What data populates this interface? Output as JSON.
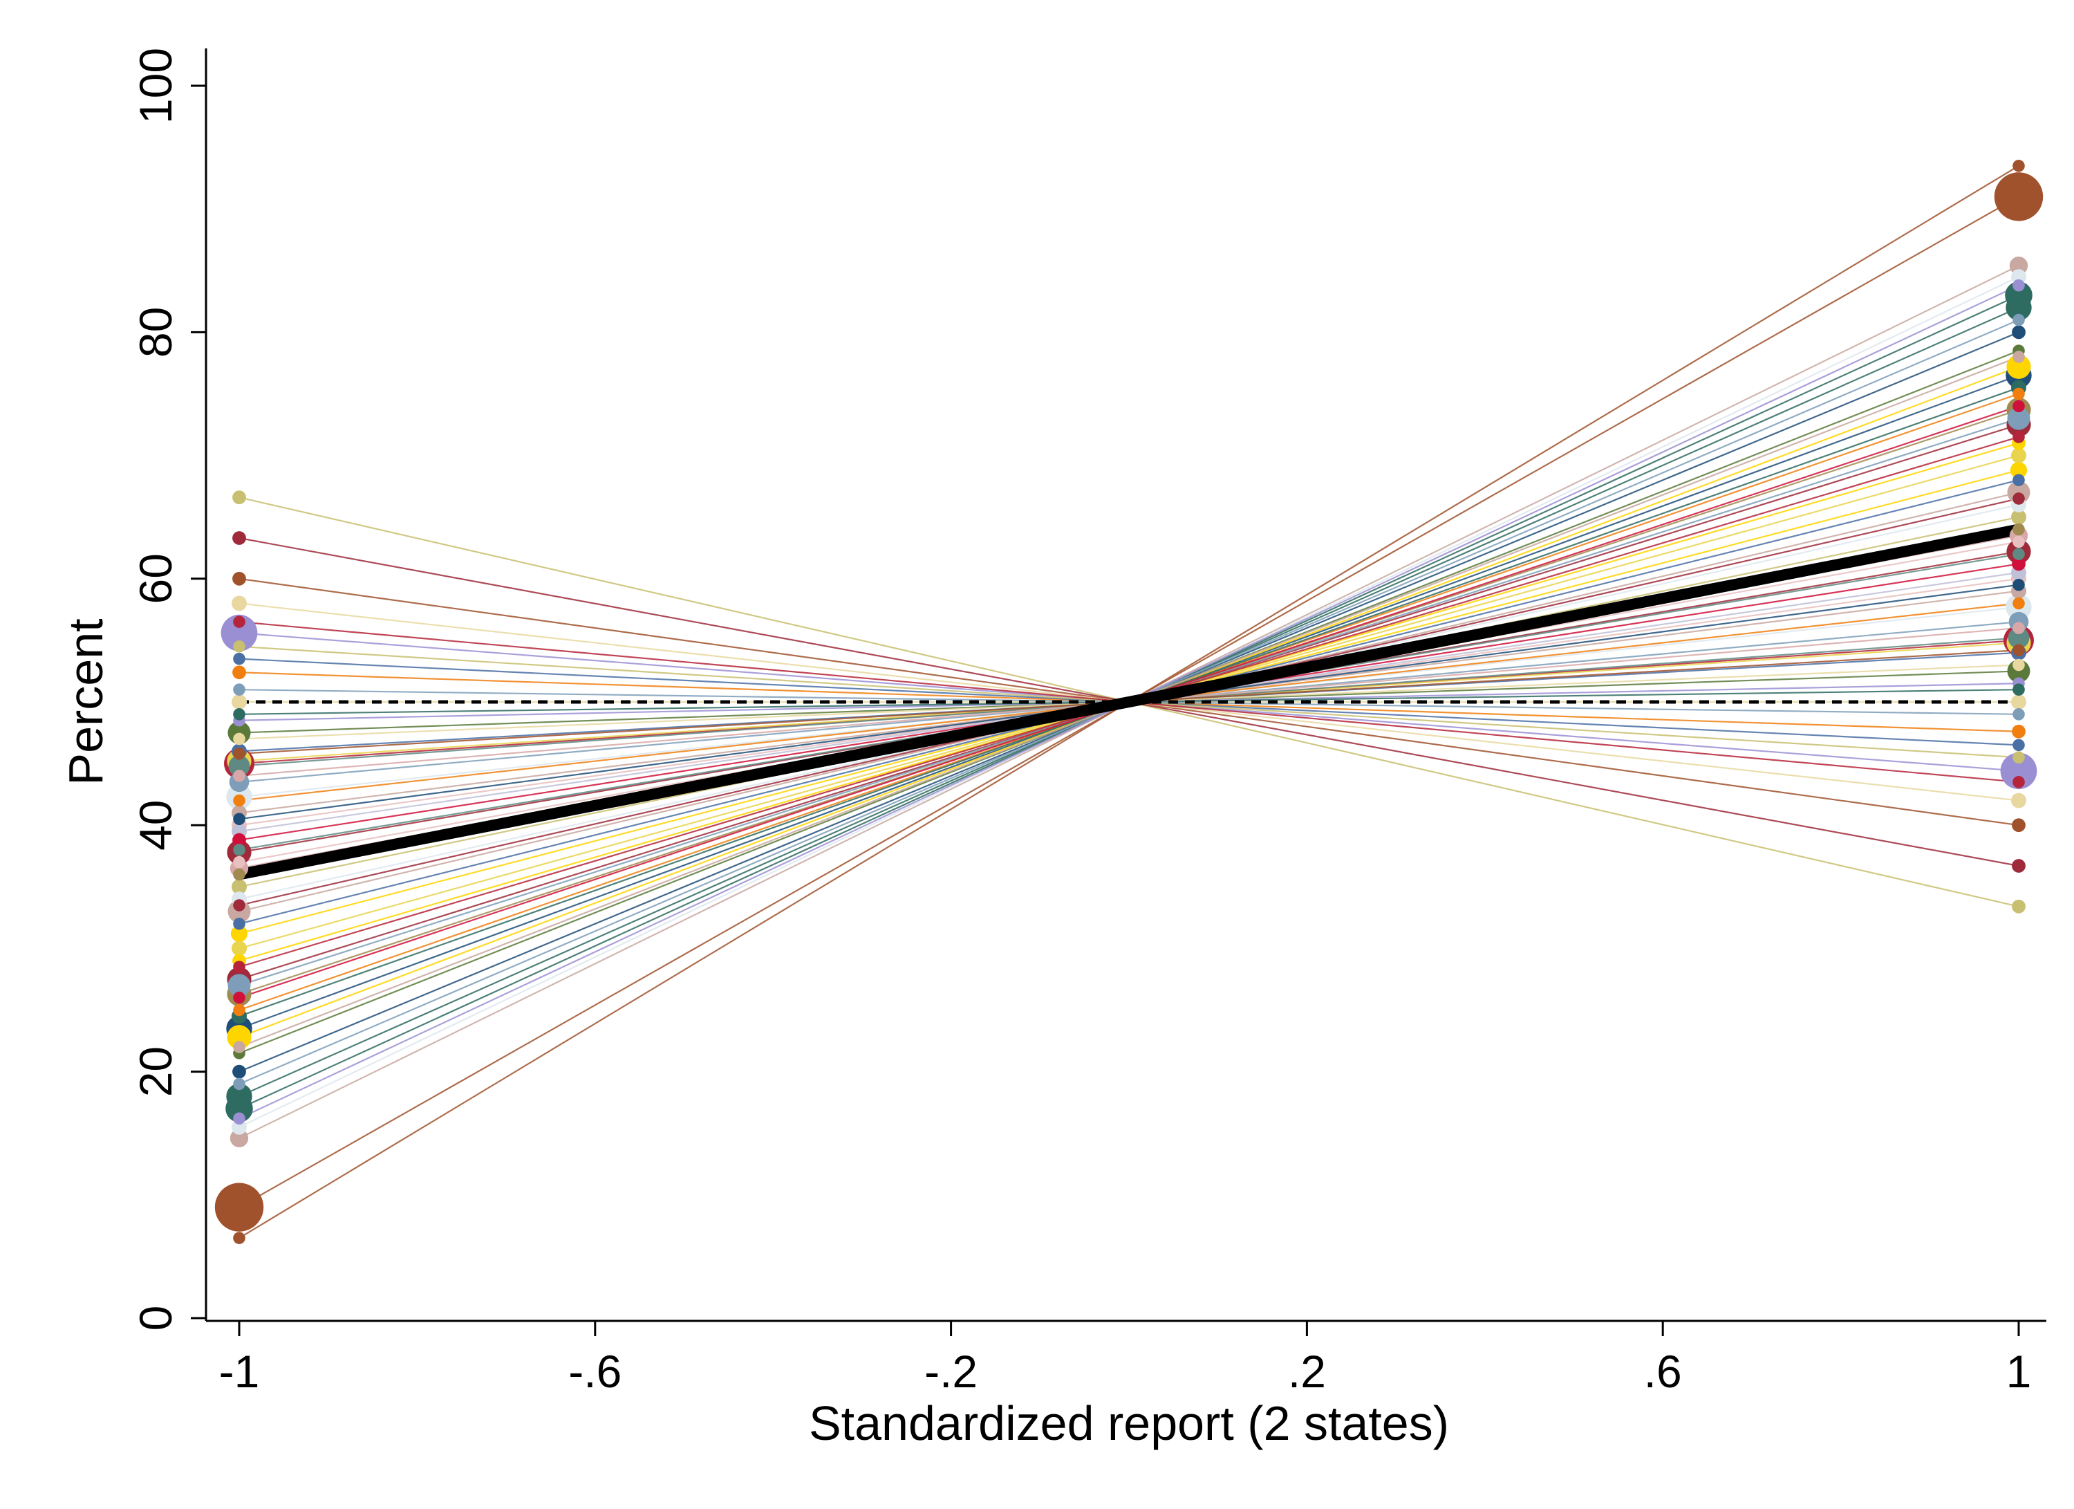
{
  "chart_data": {
    "type": "line",
    "title": "",
    "xlabel": "Standardized report (2 states)",
    "ylabel": "Percent",
    "xlim": [
      -1.04,
      1.04
    ],
    "ylim": [
      0,
      100
    ],
    "x_ticks": [
      -1,
      -0.6,
      -0.2,
      0.2,
      0.6,
      1
    ],
    "x_tick_labels": [
      "-1",
      "-.6",
      "-.2",
      ".2",
      ".6",
      "1"
    ],
    "y_ticks": [
      0,
      20,
      40,
      60,
      80,
      100
    ],
    "y_tick_labels": [
      "0",
      "20",
      "40",
      "60",
      "80",
      "100"
    ],
    "grid": false,
    "legend": "none",
    "reference_line": {
      "y": 50,
      "style": "dashed",
      "color": "#000000"
    },
    "mean_line": {
      "x": [
        -1,
        1
      ],
      "y": [
        36,
        64
      ],
      "color": "#000000"
    },
    "series": [
      {
        "y": [
          9,
          91
        ],
        "color": "#A0522D",
        "size": 3.2
      },
      {
        "y": [
          55.6,
          44.4
        ],
        "color": "#9B8FD4",
        "size": 2.4
      },
      {
        "y": [
          47.5,
          52.5
        ],
        "color": "#5B7A3A",
        "size": 1.5
      },
      {
        "y": [
          45,
          55
        ],
        "color": "#B5243A",
        "size": 2.0
      },
      {
        "y": [
          45.2,
          54.8
        ],
        "color": "#E8D44D",
        "size": 1.6
      },
      {
        "y": [
          44.8,
          55.2
        ],
        "color": "#5F8A83",
        "size": 1.4
      },
      {
        "y": [
          42.3,
          57.7
        ],
        "color": "#DDE8EE",
        "size": 1.7
      },
      {
        "y": [
          38.8,
          61.2
        ],
        "color": "#D0103A",
        "size": 0.9
      },
      {
        "y": [
          37.8,
          62.2
        ],
        "color": "#9E2A3A",
        "size": 1.6
      },
      {
        "y": [
          36.5,
          63.5
        ],
        "color": "#D8A8A8",
        "size": 1.2
      },
      {
        "y": [
          33,
          67
        ],
        "color": "#C8A8A0",
        "size": 1.5
      },
      {
        "y": [
          31.2,
          68.8
        ],
        "color": "#FFD500",
        "size": 1.1
      },
      {
        "y": [
          29,
          71
        ],
        "color": "#FFD500",
        "size": 0.9
      },
      {
        "y": [
          27.5,
          72.5
        ],
        "color": "#9E2A3A",
        "size": 1.6
      },
      {
        "y": [
          27,
          73
        ],
        "color": "#7D9DB8",
        "size": 1.5
      },
      {
        "y": [
          26.3,
          73.7
        ],
        "color": "#A08A50",
        "size": 1.6
      },
      {
        "y": [
          23.5,
          76.5
        ],
        "color": "#1E4D78",
        "size": 1.7
      },
      {
        "y": [
          22.8,
          77.2
        ],
        "color": "#FFD500",
        "size": 1.6
      },
      {
        "y": [
          20,
          80
        ],
        "color": "#1E4D78",
        "size": 0.9
      },
      {
        "y": [
          18,
          82
        ],
        "color": "#2E6B60",
        "size": 1.7
      },
      {
        "y": [
          17,
          83
        ],
        "color": "#2E6B60",
        "size": 1.8
      },
      {
        "y": [
          15.5,
          84.5
        ],
        "color": "#DDE8EE",
        "size": 1.0
      },
      {
        "y": [
          14.6,
          85.4
        ],
        "color": "#C8A8A0",
        "size": 1.2
      },
      {
        "y": [
          6.5,
          93.5
        ],
        "color": "#A0522D",
        "size": 0.8
      },
      {
        "y": [
          66.6,
          33.4
        ],
        "color": "#C8C070",
        "size": 0.9
      },
      {
        "y": [
          63.3,
          36.7
        ],
        "color": "#9E2A3A",
        "size": 0.9
      },
      {
        "y": [
          60,
          40
        ],
        "color": "#A0522D",
        "size": 0.9
      },
      {
        "y": [
          58,
          42
        ],
        "color": "#E8D8A0",
        "size": 1.0
      },
      {
        "y": [
          52.4,
          47.6
        ],
        "color": "#F07F10",
        "size": 0.9
      },
      {
        "y": [
          50,
          50
        ],
        "color": "#E8D8A0",
        "size": 1.0
      },
      {
        "y": [
          35,
          65
        ],
        "color": "#C8C070",
        "size": 1.0
      },
      {
        "y": [
          40,
          60
        ],
        "color": "#E8C0C0",
        "size": 1.0
      },
      {
        "y": [
          43.5,
          56.5
        ],
        "color": "#7D9DB8",
        "size": 1.3
      },
      {
        "y": [
          46,
          54
        ],
        "color": "#4A6FA5",
        "size": 1.0
      },
      {
        "y": [
          41,
          59
        ],
        "color": "#C8A8A0",
        "size": 1.0
      },
      {
        "y": [
          39.5,
          60.5
        ],
        "color": "#C0C0D8",
        "size": 1.0
      },
      {
        "y": [
          34,
          66
        ],
        "color": "#DDE8EE",
        "size": 1.0
      },
      {
        "y": [
          30,
          70
        ],
        "color": "#E8D44D",
        "size": 1.0
      },
      {
        "y": [
          25,
          75
        ],
        "color": "#F07F10",
        "size": 0.8
      },
      {
        "y": [
          24.5,
          75.5
        ],
        "color": "#2E6B60",
        "size": 1.0
      },
      {
        "y": [
          21.5,
          78.5
        ],
        "color": "#5B7A3A",
        "size": 0.8
      },
      {
        "y": [
          19,
          81
        ],
        "color": "#7D9DB8",
        "size": 0.8
      },
      {
        "y": [
          16.2,
          83.8
        ],
        "color": "#9B8FD4",
        "size": 0.8
      },
      {
        "y": [
          28.5,
          71.5
        ],
        "color": "#B5243A",
        "size": 0.8
      },
      {
        "y": [
          32,
          68
        ],
        "color": "#4A6FA5",
        "size": 0.8
      },
      {
        "y": [
          36,
          64
        ],
        "color": "#A08A50",
        "size": 0.8
      },
      {
        "y": [
          38,
          62
        ],
        "color": "#5F8A83",
        "size": 0.8
      },
      {
        "y": [
          42,
          58
        ],
        "color": "#F07F10",
        "size": 0.8
      },
      {
        "y": [
          44,
          56
        ],
        "color": "#D8A8A8",
        "size": 0.8
      },
      {
        "y": [
          48.5,
          51.5
        ],
        "color": "#9B8FD4",
        "size": 0.8
      },
      {
        "y": [
          49,
          51
        ],
        "color": "#2E6B60",
        "size": 0.8
      },
      {
        "y": [
          47,
          53
        ],
        "color": "#E8D8A0",
        "size": 0.8
      },
      {
        "y": [
          53.5,
          46.5
        ],
        "color": "#4A6FA5",
        "size": 0.8
      },
      {
        "y": [
          54.5,
          45.5
        ],
        "color": "#C8C070",
        "size": 0.8
      },
      {
        "y": [
          56.5,
          43.5
        ],
        "color": "#B5243A",
        "size": 0.8
      },
      {
        "y": [
          51,
          49
        ],
        "color": "#7D9DB8",
        "size": 0.8
      },
      {
        "y": [
          22,
          78
        ],
        "color": "#C8A8A0",
        "size": 0.8
      },
      {
        "y": [
          26,
          74
        ],
        "color": "#D0103A",
        "size": 0.8
      },
      {
        "y": [
          33.5,
          66.5
        ],
        "color": "#9E2A3A",
        "size": 0.8
      },
      {
        "y": [
          37,
          63
        ],
        "color": "#E8C0C0",
        "size": 0.8
      },
      {
        "y": [
          40.5,
          59.5
        ],
        "color": "#1E4D78",
        "size": 0.8
      },
      {
        "y": [
          45.8,
          54.2
        ],
        "color": "#A0522D",
        "size": 0.8
      }
    ]
  }
}
